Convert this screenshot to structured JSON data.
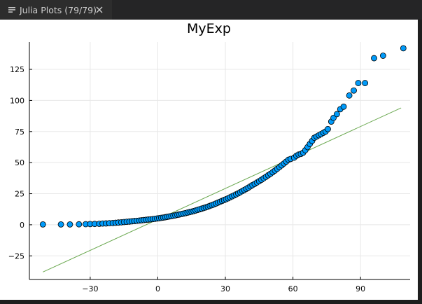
{
  "tab": {
    "label": "Julia Plots (79/79)",
    "icon": "list-icon",
    "close_icon": "close-icon"
  },
  "colors": {
    "tabbar_bg": "#252526",
    "tab_bg": "#2d2d2d",
    "plot_bg": "#ffffff",
    "scatter_fill": "#009af9",
    "line_color": "#6aa84f"
  },
  "chart_data": {
    "type": "scatter",
    "title": "MyExp",
    "xlabel": "",
    "ylabel": "",
    "xlim": [
      -57,
      112
    ],
    "ylim": [
      -44,
      147
    ],
    "xticks": [
      -30,
      0,
      30,
      60,
      90
    ],
    "yticks": [
      -25,
      0,
      25,
      50,
      75,
      100,
      125
    ],
    "grid": true,
    "legend": "none",
    "series": [
      {
        "kind": "scatter",
        "points": [
          [
            -51,
            0.3
          ],
          [
            -43,
            0.3
          ],
          [
            -39,
            0.3
          ],
          [
            -35,
            0.4
          ],
          [
            -32,
            0.5
          ],
          [
            -30,
            0.6
          ],
          [
            -28,
            0.7
          ],
          [
            -26,
            0.8
          ],
          [
            -24.5,
            1.0
          ],
          [
            -23,
            1.1
          ],
          [
            -21.5,
            1.3
          ],
          [
            -20,
            1.4
          ],
          [
            -18.7,
            1.6
          ],
          [
            -17.5,
            1.8
          ],
          [
            -16.2,
            2.0
          ],
          [
            -15,
            2.2
          ],
          [
            -13.8,
            2.4
          ],
          [
            -12.6,
            2.6
          ],
          [
            -11.5,
            2.8
          ],
          [
            -10.4,
            3.0
          ],
          [
            -9.3,
            3.2
          ],
          [
            -8.2,
            3.4
          ],
          [
            -7.2,
            3.6
          ],
          [
            -6.2,
            3.8
          ],
          [
            -5.2,
            4.0
          ],
          [
            -4.2,
            4.2
          ],
          [
            -3.2,
            4.4
          ],
          [
            -2.2,
            4.6
          ],
          [
            -1.3,
            4.8
          ],
          [
            -0.3,
            5.1
          ],
          [
            0.6,
            5.3
          ],
          [
            1.5,
            5.6
          ],
          [
            2.4,
            5.8
          ],
          [
            3.3,
            6.1
          ],
          [
            4.2,
            6.4
          ],
          [
            5.1,
            6.7
          ],
          [
            6.0,
            7.0
          ],
          [
            6.9,
            7.3
          ],
          [
            7.8,
            7.6
          ],
          [
            8.7,
            8.0
          ],
          [
            9.6,
            8.3
          ],
          [
            10.5,
            8.7
          ],
          [
            11.4,
            9.0
          ],
          [
            12.3,
            9.4
          ],
          [
            13.2,
            9.8
          ],
          [
            14.1,
            10.2
          ],
          [
            15.0,
            10.6
          ],
          [
            15.9,
            11.0
          ],
          [
            16.8,
            11.5
          ],
          [
            17.7,
            12.0
          ],
          [
            18.6,
            12.5
          ],
          [
            19.5,
            13.0
          ],
          [
            20.4,
            13.5
          ],
          [
            21.3,
            14.0
          ],
          [
            22.2,
            14.6
          ],
          [
            23.1,
            15.2
          ],
          [
            24.0,
            15.8
          ],
          [
            24.9,
            16.4
          ],
          [
            25.8,
            17.1
          ],
          [
            26.7,
            17.8
          ],
          [
            27.6,
            18.5
          ],
          [
            28.5,
            19.2
          ],
          [
            29.4,
            19.9
          ],
          [
            30.3,
            20.6
          ],
          [
            31.2,
            21.3
          ],
          [
            32.1,
            22.1
          ],
          [
            33.0,
            22.9
          ],
          [
            33.9,
            23.7
          ],
          [
            34.8,
            24.5
          ],
          [
            35.7,
            25.3
          ],
          [
            36.6,
            26.2
          ],
          [
            37.5,
            27.1
          ],
          [
            38.4,
            28.0
          ],
          [
            39.3,
            28.9
          ],
          [
            40.2,
            29.9
          ],
          [
            41.1,
            30.9
          ],
          [
            42.0,
            31.9
          ],
          [
            43.0,
            32.9
          ],
          [
            44.0,
            34.0
          ],
          [
            45.0,
            35.1
          ],
          [
            46.0,
            36.2
          ],
          [
            47.0,
            37.4
          ],
          [
            48.0,
            38.6
          ],
          [
            49.0,
            39.8
          ],
          [
            50.0,
            41.0
          ],
          [
            51.0,
            42.3
          ],
          [
            52.0,
            43.6
          ],
          [
            53.0,
            45.0
          ],
          [
            54.0,
            46.4
          ],
          [
            55.0,
            47.8
          ],
          [
            56.0,
            49.3
          ],
          [
            57.0,
            50.8
          ],
          [
            58.0,
            52.3
          ],
          [
            59.0,
            53.0
          ],
          [
            60.5,
            54.0
          ],
          [
            61.5,
            55.5
          ],
          [
            62.5,
            56.5
          ],
          [
            63.5,
            57.0
          ],
          [
            64.5,
            58.0
          ],
          [
            65.5,
            60.0
          ],
          [
            66.5,
            62.5
          ],
          [
            67.5,
            65.0
          ],
          [
            68.5,
            67.5
          ],
          [
            69.5,
            70.0
          ],
          [
            70.5,
            71.0
          ],
          [
            71.5,
            72.0
          ],
          [
            72.5,
            73.0
          ],
          [
            73.5,
            74.0
          ],
          [
            74.5,
            75.0
          ],
          [
            75.5,
            77.0
          ],
          [
            77.0,
            83.0
          ],
          [
            78.0,
            86.0
          ],
          [
            79.5,
            89.0
          ],
          [
            81.0,
            93.0
          ],
          [
            82.5,
            95.0
          ],
          [
            85.0,
            104.0
          ],
          [
            87.0,
            108.0
          ],
          [
            89.0,
            114.0
          ],
          [
            92.0,
            114.0
          ],
          [
            96.0,
            134.0
          ],
          [
            100.0,
            136.0
          ],
          [
            109.0,
            142.0
          ]
        ]
      },
      {
        "kind": "line",
        "points": [
          [
            -51,
            -38
          ],
          [
            108,
            94
          ]
        ]
      }
    ]
  }
}
